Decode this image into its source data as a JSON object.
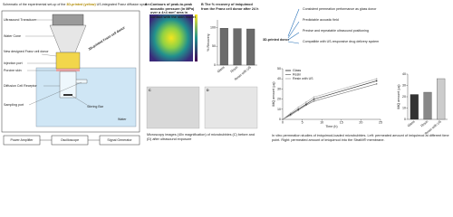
{
  "schematic": {
    "title_parts": [
      "Schematic of the experimental set-up of the ",
      "3D-printed (yellow)",
      " US-integrated Franz diffusion system."
    ],
    "labels": [
      "Ultrasound Transducer",
      "Water Cone",
      "New designed Franz cell donor",
      "Injection port",
      "Porcine skin",
      "Diffusion Cell Receptor",
      "Sampling port",
      "Stirring Bar",
      "Water",
      "3D-printed Franz cell donor"
    ],
    "devices": [
      "Power Amplifier",
      "Oscilloscope",
      "Signal Generator"
    ]
  },
  "acoustic_map": {
    "label": "A",
    "caption": "Contours of peak-to-peak acoustic pressure (in MPa) over a 4×4 mm² area in contact with the skin model"
  },
  "microscopy": {
    "labels": [
      "C",
      "D"
    ],
    "caption": "Microscopy images (40x magnification) of microbubbles (C) before and (D) after ultrasound exposure"
  },
  "highlights": {
    "arrow_label": "3D-printed donor",
    "items": [
      "Consistent permeation performance as glass donor",
      "Predictable acoustic field",
      "Precise and repeatable ultrasound positioning",
      "Compatible with US-responsive drug delivery system"
    ]
  },
  "permeation_caption": "In vitro permeation studies of imiquimod-loaded microbubbles. Left: permeated amount of imiquimod at different time point. Right: permeated amount of imiquimod into the StratM® membrane.",
  "chart_data": [
    {
      "type": "bar",
      "label": "B",
      "title": "The % recovery of imiquimod from the Franz cell donor after 24 h",
      "y_label": "% Recovery",
      "categories": [
        "Glass",
        "Resin",
        "Resin with US"
      ],
      "values": [
        98,
        97,
        96
      ],
      "color": "#6b6b6b",
      "ylim": [
        0,
        120
      ],
      "yticks": [
        0,
        50,
        100
      ]
    },
    {
      "type": "line",
      "x_label": "Time (h)",
      "y_label": "IMQ amount (μg)",
      "x": [
        0,
        2,
        4,
        6,
        8,
        24
      ],
      "series": [
        {
          "name": "Glass",
          "color": "#222222",
          "values": [
            0,
            5,
            10,
            15,
            20,
            38
          ]
        },
        {
          "name": "Resin",
          "color": "#777777",
          "values": [
            0,
            4,
            9,
            14,
            18,
            35
          ]
        },
        {
          "name": "Resin with US",
          "color": "#aaaaaa",
          "values": [
            0,
            6,
            12,
            17,
            22,
            40
          ]
        }
      ],
      "xlim": [
        0,
        25
      ],
      "xticks": [
        0,
        5,
        10,
        15,
        20,
        25
      ],
      "ylim": [
        0,
        50
      ],
      "yticks": [
        0,
        10,
        20,
        30,
        40,
        50
      ],
      "legend": "upper-left"
    },
    {
      "type": "bar",
      "y_label": "IMQ amount (μg)",
      "categories": [
        "Glass",
        "Resin",
        "Resin with US"
      ],
      "values": [
        22,
        24,
        36
      ],
      "colors": [
        "#333333",
        "#888888",
        "#cccccc"
      ],
      "ylim": [
        0,
        40
      ],
      "yticks": [
        0,
        10,
        20,
        30,
        40
      ]
    }
  ]
}
